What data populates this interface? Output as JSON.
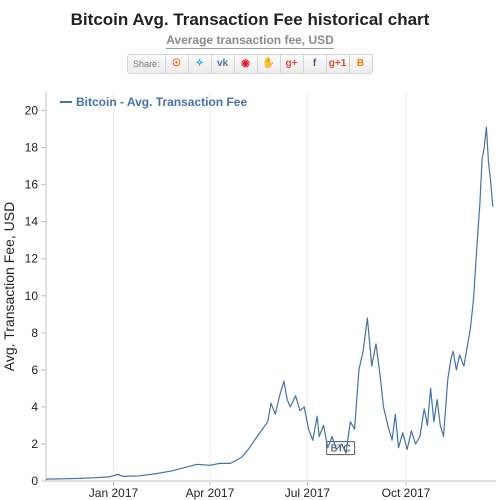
{
  "title": "Bitcoin Avg. Transaction Fee historical chart",
  "subtitle": "Average transaction fee, USD",
  "share": {
    "label": "Share:",
    "buttons": [
      {
        "icon": "reddit-icon",
        "glyph": "☉",
        "color": "#ff4500"
      },
      {
        "icon": "twitter-icon",
        "glyph": "✧",
        "color": "#1da1f2"
      },
      {
        "icon": "vk-icon",
        "glyph": "vk",
        "color": "#4a76a8"
      },
      {
        "icon": "weibo-icon",
        "glyph": "◉",
        "color": "#e6162d"
      },
      {
        "icon": "like-icon",
        "glyph": "✋",
        "color": "#3b5998"
      },
      {
        "icon": "google-plus-icon",
        "glyph": "g+",
        "color": "#dd4b39"
      },
      {
        "icon": "facebook-icon",
        "glyph": "f",
        "color": "#3b5998"
      },
      {
        "icon": "google-plus-one-icon",
        "glyph": "g+1",
        "color": "#dd4b39"
      },
      {
        "icon": "blogger-icon",
        "glyph": "B",
        "color": "#f57d00"
      }
    ]
  },
  "watermark": "BTC",
  "chart_data": {
    "type": "line",
    "ylabel": "Avg. Transaction Fee, USD",
    "ylim": [
      0,
      21
    ],
    "yticks": [
      0,
      2,
      4,
      6,
      8,
      10,
      12,
      14,
      16,
      18,
      20
    ],
    "xlim": [
      "2016-10-30",
      "2017-12-24"
    ],
    "xticks": [
      {
        "date": "2017-01-01",
        "label": "Jan 2017"
      },
      {
        "date": "2017-04-01",
        "label": "Apr 2017"
      },
      {
        "date": "2017-07-01",
        "label": "Jul 2017"
      },
      {
        "date": "2017-10-01",
        "label": "Oct 2017"
      }
    ],
    "legend_position": "top-left",
    "grid": false,
    "series": [
      {
        "name": "Bitcoin - Avg. Transaction Fee",
        "color": "#4572a7",
        "points": [
          [
            "2016-10-30",
            0.1
          ],
          [
            "2016-11-15",
            0.12
          ],
          [
            "2016-12-01",
            0.14
          ],
          [
            "2016-12-15",
            0.18
          ],
          [
            "2016-12-28",
            0.22
          ],
          [
            "2017-01-05",
            0.35
          ],
          [
            "2017-01-10",
            0.25
          ],
          [
            "2017-01-25",
            0.28
          ],
          [
            "2017-02-10",
            0.4
          ],
          [
            "2017-02-25",
            0.55
          ],
          [
            "2017-03-10",
            0.75
          ],
          [
            "2017-03-20",
            0.9
          ],
          [
            "2017-04-01",
            0.85
          ],
          [
            "2017-04-10",
            0.95
          ],
          [
            "2017-04-20",
            0.95
          ],
          [
            "2017-04-25",
            1.1
          ],
          [
            "2017-05-01",
            1.3
          ],
          [
            "2017-05-08",
            1.8
          ],
          [
            "2017-05-15",
            2.4
          ],
          [
            "2017-05-20",
            2.8
          ],
          [
            "2017-05-25",
            3.2
          ],
          [
            "2017-05-28",
            4.2
          ],
          [
            "2017-06-01",
            3.6
          ],
          [
            "2017-06-05",
            4.6
          ],
          [
            "2017-06-09",
            5.4
          ],
          [
            "2017-06-12",
            4.4
          ],
          [
            "2017-06-15",
            4.0
          ],
          [
            "2017-06-20",
            4.6
          ],
          [
            "2017-06-24",
            3.8
          ],
          [
            "2017-06-28",
            4.0
          ],
          [
            "2017-07-02",
            2.8
          ],
          [
            "2017-07-06",
            2.2
          ],
          [
            "2017-07-10",
            3.5
          ],
          [
            "2017-07-12",
            2.4
          ],
          [
            "2017-07-16",
            3.0
          ],
          [
            "2017-07-20",
            1.8
          ],
          [
            "2017-07-24",
            2.4
          ],
          [
            "2017-07-28",
            1.7
          ],
          [
            "2017-08-02",
            2.0
          ],
          [
            "2017-08-06",
            1.5
          ],
          [
            "2017-08-10",
            3.2
          ],
          [
            "2017-08-14",
            2.8
          ],
          [
            "2017-08-18",
            6.0
          ],
          [
            "2017-08-22",
            7.0
          ],
          [
            "2017-08-26",
            8.8
          ],
          [
            "2017-08-30",
            6.2
          ],
          [
            "2017-09-03",
            7.4
          ],
          [
            "2017-09-07",
            5.6
          ],
          [
            "2017-09-10",
            4.0
          ],
          [
            "2017-09-14",
            3.0
          ],
          [
            "2017-09-18",
            2.2
          ],
          [
            "2017-09-21",
            3.6
          ],
          [
            "2017-09-24",
            1.8
          ],
          [
            "2017-09-28",
            2.6
          ],
          [
            "2017-10-02",
            1.7
          ],
          [
            "2017-10-06",
            2.7
          ],
          [
            "2017-10-10",
            2.0
          ],
          [
            "2017-10-14",
            2.4
          ],
          [
            "2017-10-18",
            3.9
          ],
          [
            "2017-10-21",
            3.0
          ],
          [
            "2017-10-24",
            5.0
          ],
          [
            "2017-10-27",
            3.2
          ],
          [
            "2017-10-30",
            4.4
          ],
          [
            "2017-11-02",
            3.0
          ],
          [
            "2017-11-05",
            2.4
          ],
          [
            "2017-11-09",
            5.5
          ],
          [
            "2017-11-12",
            6.6
          ],
          [
            "2017-11-14",
            7.0
          ],
          [
            "2017-11-17",
            6.0
          ],
          [
            "2017-11-20",
            6.8
          ],
          [
            "2017-11-24",
            6.2
          ],
          [
            "2017-11-27",
            7.2
          ],
          [
            "2017-11-30",
            8.2
          ],
          [
            "2017-12-03",
            9.8
          ],
          [
            "2017-12-06",
            12.5
          ],
          [
            "2017-12-09",
            15.0
          ],
          [
            "2017-12-11",
            17.4
          ],
          [
            "2017-12-13",
            18.0
          ],
          [
            "2017-12-15",
            19.1
          ],
          [
            "2017-12-17",
            17.2
          ],
          [
            "2017-12-19",
            16.2
          ],
          [
            "2017-12-21",
            14.8
          ]
        ]
      }
    ]
  }
}
